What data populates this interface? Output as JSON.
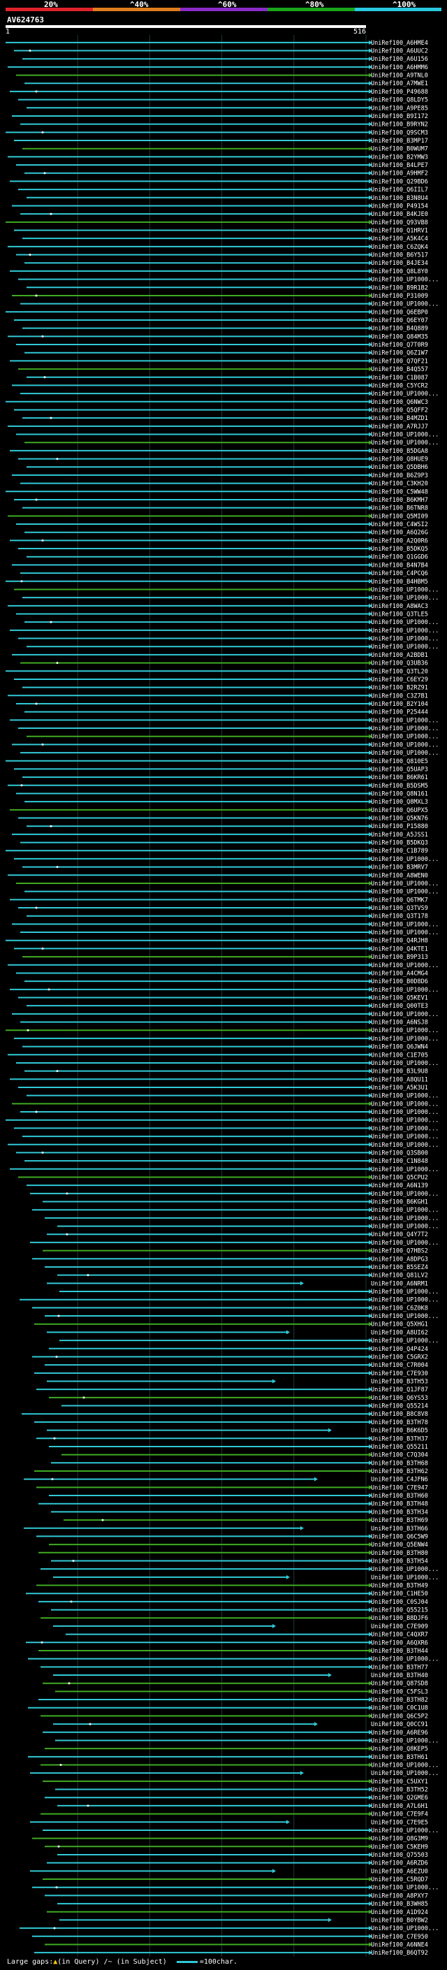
{
  "header": {
    "query_id": "AV624763",
    "ruler_start": "1",
    "ruler_end": "516",
    "ticks": [
      "20%",
      "^40%",
      "^60%",
      "^80%",
      "^100%"
    ],
    "tick_colors": [
      "#e0232b",
      "#e07c1e",
      "#8a2bc9",
      "#1aa51a",
      "#2bc9e0"
    ]
  },
  "footer": {
    "gaps_label": "Large gaps: ",
    "query_gap": "(in Query)",
    "subject_gap": "/~ (in Subject)",
    "scale_label": "=100char."
  },
  "chart_data": {
    "type": "alignment",
    "query_length": 516,
    "title": "AV624763",
    "colors": {
      "cyan": "#31c9d6",
      "green": "#3faa23"
    },
    "hits": [
      "UniRef100_A6HME4",
      "UniRef100_A6UUC2",
      "UniRef100_A6U156",
      "UniRef100_A6HMM6",
      "UniRef100_A9TNL0",
      "UniRef100_A7MWE1",
      "UniRef100_P49688",
      "UniRef100_Q8LDY5",
      "UniRef100_A9PE85",
      "UniRef100_B9I172",
      "UniRef100_B9RYN2",
      "UniRef100_Q9SCM3",
      "UniRef100_B3MP17",
      "UniRef100_B0WUM7",
      "UniRef100_B2YMW3",
      "UniRef100_B4LPE7",
      "UniRef100_A9HMF2",
      "UniRef100_Q29BD6",
      "UniRef100_Q6IIL7",
      "UniRef100_B3N8U4",
      "UniRef100_P49154",
      "UniRef100_B4KJE0",
      "UniRef100_Q93VB8",
      "UniRef100_Q1HRV1",
      "UniRef100_A5K4C4",
      "UniRef100_C6ZQK4",
      "UniRef100_B6Y517",
      "UniRef100_B4JE34",
      "UniRef100_Q8L8Y0",
      "UniRef100_UP1000...",
      "UniRef100_B9R1B2",
      "UniRef100_P31009",
      "UniRef100_UP1000...",
      "UniRef100_Q6EBP0",
      "UniRef100_Q6EY07",
      "UniRef100_B4Q889",
      "UniRef100_Q84M35",
      "UniRef100_Q7T0R9",
      "UniRef100_Q6Z1W7",
      "UniRef100_Q7QF21",
      "UniRef100_B4Q557",
      "UniRef100_C1B087",
      "UniRef100_C5YCR2",
      "UniRef100_UP1000...",
      "UniRef100_Q6NWC3",
      "UniRef100_Q5QFF2",
      "UniRef100_B4MZD1",
      "UniRef100_A7RJJ7",
      "UniRef100_UP1000...",
      "UniRef100_UP1000...",
      "UniRef100_B5DGA8",
      "UniRef100_Q8HUE9",
      "UniRef100_Q5DBH6",
      "UniRef100_B6Z9P3",
      "UniRef100_C3KH20",
      "UniRef100_C5WW48",
      "UniRef100_B6KMH7",
      "UniRef100_B6TNR8",
      "UniRef100_Q5MI09",
      "UniRef100_C4WSI2",
      "UniRef100_A6Q26G",
      "UniRef100_A2Q0R6",
      "UniRef100_B5DKQ5",
      "UniRef100_Q1GGD6",
      "UniRef100_B4N7B4",
      "UniRef100_C4PCQ6",
      "UniRef100_B4HBM5",
      "UniRef100_UP1000...",
      "UniRef100_UP1000...",
      "UniRef100_A8WAC3",
      "UniRef100_Q3TLE5",
      "UniRef100_UP1000...",
      "UniRef100_UP1000...",
      "UniRef100_UP1000...",
      "UniRef100_UP1000...",
      "UniRef100_A2BDB1",
      "UniRef100_Q3UB36",
      "UniRef100_Q3TL20",
      "UniRef100_C6EY29",
      "UniRef100_B2RZ91",
      "UniRef100_C3Z7B1",
      "UniRef100_B2Y104",
      "UniRef100_P25444",
      "UniRef100_UP1000...",
      "UniRef100_UP1000...",
      "UniRef100_UP1000...",
      "UniRef100_UP1000...",
      "UniRef100_UP1000...",
      "UniRef100_Q810E5",
      "UniRef100_Q5UAP3",
      "UniRef100_B6KR61",
      "UniRef100_B5DSM5",
      "UniRef100_Q8N161",
      "UniRef100_Q8MXL3",
      "UniRef100_Q6UPX5",
      "UniRef100_Q5KN76",
      "UniRef100_P15880",
      "UniRef100_A5JSS1",
      "UniRef100_B5DKQ3",
      "UniRef100_C1B789",
      "UniRef100_UP1000...",
      "UniRef100_B3MRV7",
      "UniRef100_A8WEN0",
      "UniRef100_UP1000...",
      "UniRef100_UP1000...",
      "UniRef100_Q6TMK7",
      "UniRef100_Q3TVS9",
      "UniRef100_Q3T178",
      "UniRef100_UP1000...",
      "UniRef100_UP1000...",
      "UniRef100_Q4RJH8",
      "UniRef100_Q4KTE1",
      "UniRef100_B9P313",
      "UniRef100_UP1000...",
      "UniRef100_A4CMG4",
      "UniRef100_B0D8D6",
      "UniRef100_UP1000...",
      "UniRef100_Q5KEV1",
      "UniRef100_Q00TE3",
      "UniRef100_UP1000...",
      "UniRef100_A6NSJ8",
      "UniRef100_UP1000...",
      "UniRef100_UP1000...",
      "UniRef100_Q6JWN4",
      "UniRef100_C1E705",
      "UniRef100_UP1000...",
      "UniRef100_B3L9U8",
      "UniRef100_A8QU11",
      "UniRef100_A5K3U1",
      "UniRef100_UP1000...",
      "UniRef100_UP1000...",
      "UniRef100_UP1000...",
      "UniRef100_UP1000...",
      "UniRef100_UP1000...",
      "UniRef100_UP1000...",
      "UniRef100_UP1000...",
      "UniRef100_Q3SB00",
      "UniRef100_C1N848",
      "UniRef100_UP1000...",
      "UniRef100_Q5CPU2",
      "UniRef100_A6N139",
      "UniRef100_UP1000...",
      "UniRef100_B6KGH1",
      "UniRef100_UP1000...",
      "UniRef100_UP1000...",
      "UniRef100_UP1000...",
      "UniRef100_Q4Y7T2",
      "UniRef100_UP1000...",
      "UniRef100_Q7HBS2",
      "UniRef100_A8DPG3",
      "UniRef100_B5SEZ4",
      "UniRef100_Q81LV2",
      "UniRef100_A6NRM1",
      "UniRef100_UP1000...",
      "UniRef100_UP1000...",
      "UniRef100_C6Z0K8",
      "UniRef100_UP1000...",
      "UniRef100_Q5XHG1",
      "UniRef100_A8UI62",
      "UniRef100_UP1000...",
      "UniRef100_Q4P424",
      "UniRef100_C5GRX2",
      "UniRef100_C7R004",
      "UniRef100_C7E930",
      "UniRef100_B3TH53",
      "UniRef100_Q1JF87",
      "UniRef100_Q6YS53",
      "UniRef100_Q55214",
      "UniRef100_B8C8V8",
      "UniRef100_B3TH78",
      "UniRef100_B6K6D5",
      "UniRef100_B3TH37",
      "UniRef100_Q55211",
      "UniRef100_C7Q304",
      "UniRef100_B3TH68",
      "UniRef100_B3TH62",
      "UniRef100_C4JFN6",
      "UniRef100_C7E947",
      "UniRef100_B3TH60",
      "UniRef100_B3TH48",
      "UniRef100_B3TH34",
      "UniRef100_B3TH69",
      "UniRef100_B3TH66",
      "UniRef100_Q6C5W9",
      "UniRef100_Q5ENW4",
      "UniRef100_B3TH80",
      "UniRef100_B3TH54",
      "UniRef100_UP1000...",
      "UniRef100_UP1000...",
      "UniRef100_B3TH49",
      "UniRef100_C1HE50",
      "UniRef100_C0SJ04",
      "UniRef100_Q55215",
      "UniRef100_B8DJF6",
      "UniRef100_C7E909",
      "UniRef100_C4QXR7",
      "UniRef100_A6QXR6",
      "UniRef100_B3TH44",
      "UniRef100_UP1000...",
      "UniRef100_B3TH77",
      "UniRef100_B3TH40",
      "UniRef100_Q87SD8",
      "UniRef100_C5FSL3",
      "UniRef100_B3TH82",
      "UniRef100_C0C1U8",
      "UniRef100_Q6C5P2",
      "UniRef100_Q0CC91",
      "UniRef100_A6RE96",
      "UniRef100_UP1000...",
      "UniRef100_Q8KEP5",
      "UniRef100_B3TH61",
      "UniRef100_UP1000...",
      "UniRef100_UP1000...",
      "UniRef100_C5UXY1",
      "UniRef100_B3TH52",
      "UniRef100_Q2GME6",
      "UniRef100_A7L6H1",
      "UniRef100_C7E9F4",
      "UniRef100_C7E9E5",
      "UniRef100_UP1000...",
      "UniRef100_Q8G3M9",
      "UniRef100_C5KEH9",
      "UniRef100_Q75503",
      "UniRef100_A6RZD6",
      "UniRef100_A6EZU0",
      "UniRef100_C5RQD7",
      "UniRef100_UP1000...",
      "UniRef100_A8PXY7",
      "UniRef100_B3WH85",
      "UniRef100_A1D924",
      "UniRef100_B0YBW2",
      "UniRef100_UP1000...",
      "UniRef100_C7E950",
      "UniRef100_A6NNE4",
      "UniRef100_B6QT92"
    ]
  }
}
